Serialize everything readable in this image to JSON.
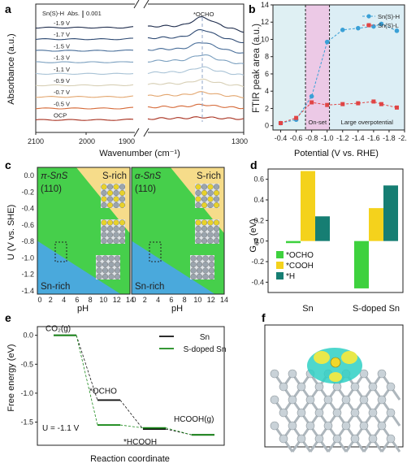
{
  "panels": {
    "a": {
      "label": "a"
    },
    "b": {
      "label": "b"
    },
    "c": {
      "label": "c"
    },
    "d": {
      "label": "d"
    },
    "e": {
      "label": "e"
    },
    "f": {
      "label": "f"
    }
  },
  "chart_data": [
    {
      "id": "a",
      "type": "line",
      "xlabel": "Wavenumber (cm⁻¹)",
      "ylabel": "Absorbance (a.u.)",
      "x_ticks_left": [
        "2100",
        "2000",
        "1900"
      ],
      "x_ticks_right": [
        "1300"
      ],
      "annotation": "*OCHO",
      "header_label": "Sn(S)-H",
      "scale_label": "Abs.",
      "scale_value": "0.001",
      "series_labels": [
        "-1.9 V",
        "-1.7 V",
        "-1.5 V",
        "-1.3 V",
        "-1.1 V",
        "-0.9 V",
        "-0.7 V",
        "-0.5 V",
        "OCP"
      ],
      "series_colors": [
        "#1f2d4d",
        "#2e4a73",
        "#4a6f9a",
        "#7a9fbf",
        "#a9c3d6",
        "#d7cfb5",
        "#e3a770",
        "#d66b3a",
        "#a8301f"
      ]
    },
    {
      "id": "b",
      "type": "line",
      "title": "",
      "xlabel": "Potential (V vs. RHE)",
      "ylabel": "FTIR peak area (a.u.)",
      "xlim": [
        -0.3,
        -2.0
      ],
      "ylim": [
        -0.5,
        14
      ],
      "x_ticks": [
        "-0.4",
        "-0.6",
        "-0.8",
        "-1.0",
        "-1.2",
        "-1.4",
        "-1.6",
        "-1.8",
        "-2.0"
      ],
      "y_ticks": [
        "0",
        "2",
        "4",
        "6",
        "8",
        "10",
        "12",
        "14"
      ],
      "regions": [
        {
          "name": "",
          "from": -0.3,
          "to": -0.72,
          "color": "#dff0f3"
        },
        {
          "name": "On-set",
          "from": -0.72,
          "to": -1.03,
          "color": "#ecc9e6"
        },
        {
          "name": "Large overpotential",
          "from": -1.03,
          "to": -2.0,
          "color": "#dceef5"
        }
      ],
      "series": [
        {
          "name": "Sn(S)-H",
          "color": "#3aa0d6",
          "marker": "circle",
          "x": [
            -0.4,
            -0.6,
            -0.8,
            -1.0,
            -1.2,
            -1.4,
            -1.6,
            -1.7,
            -1.9
          ],
          "y": [
            0.3,
            0.7,
            3.4,
            9.7,
            11.1,
            11.3,
            11.5,
            11.8,
            11.0
          ]
        },
        {
          "name": "Sn(S)-L",
          "color": "#e04545",
          "marker": "square",
          "x": [
            -0.4,
            -0.6,
            -0.8,
            -1.0,
            -1.2,
            -1.4,
            -1.6,
            -1.7,
            -1.9
          ],
          "y": [
            0.3,
            0.9,
            2.7,
            2.4,
            2.5,
            2.6,
            2.8,
            2.5,
            2.1
          ]
        }
      ]
    },
    {
      "id": "c",
      "type": "diagram",
      "ylabel": "U (V vs. SHE)",
      "xlabel": "pH",
      "x_ticks": [
        "0",
        "2",
        "4",
        "6",
        "8",
        "10",
        "12",
        "14"
      ],
      "y_ticks": [
        "0.0",
        "-0.2",
        "-0.4",
        "-0.6",
        "-0.8",
        "-1.0",
        "-1.2",
        "-1.4"
      ],
      "subplots": [
        {
          "phase": "π-SnS",
          "facet": "(110)",
          "s_region": "S-rich",
          "sn_region": "Sn-rich"
        },
        {
          "phase": "α-SnS",
          "facet": "(110)",
          "s_region": "S-rich",
          "sn_region": "Sn-rich"
        }
      ]
    },
    {
      "id": "d",
      "type": "bar",
      "ylabel": "G_ad (eV)",
      "ylim": [
        -0.5,
        0.7
      ],
      "y_ticks": [
        "0.6",
        "0.4",
        "0.2",
        "0.0",
        "-0.2",
        "-0.4"
      ],
      "categories": [
        "Sn",
        "S-doped Sn"
      ],
      "series": [
        {
          "name": "*OCHO",
          "color": "#3ed13e",
          "values": [
            -0.02,
            -0.46
          ]
        },
        {
          "name": "*COOH",
          "color": "#f4d21c",
          "values": [
            0.68,
            0.32
          ]
        },
        {
          "name": "*H",
          "color": "#167e73",
          "values": [
            0.24,
            0.54
          ]
        }
      ]
    },
    {
      "id": "e",
      "type": "line",
      "xlabel": "Reaction coordinate",
      "ylabel": "Free energy (eV)",
      "ylim": [
        -1.9,
        0.15
      ],
      "y_ticks": [
        "0.0",
        "-0.5",
        "-1.0",
        "-1.5"
      ],
      "condition": "U = -1.1 V",
      "states": [
        "CO₂(g)",
        "*OCHO",
        "*HCOOH",
        "HCOOH(g)"
      ],
      "series": [
        {
          "name": "Sn",
          "color": "#111111",
          "values": [
            0.0,
            -1.12,
            -1.62,
            -1.72
          ]
        },
        {
          "name": "S-doped Sn",
          "color": "#1a8a1a",
          "values": [
            0.0,
            -1.55,
            -1.6,
            -1.72
          ]
        }
      ]
    }
  ],
  "panel_f": {
    "description_label": "f"
  }
}
